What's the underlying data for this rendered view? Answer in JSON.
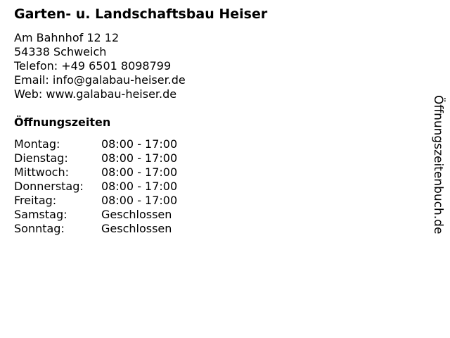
{
  "title": "Garten- u. Landschaftsbau Heiser",
  "address": [
    "Am Bahnhof 12 12",
    "54338 Schweich",
    "Telefon: +49 6501 8098799",
    "Email: info@galabau-heiser.de",
    "Web: www.galabau-heiser.de"
  ],
  "hours_title": "Öffnungszeiten",
  "hours": [
    {
      "day": "Montag:",
      "time": "08:00 - 17:00"
    },
    {
      "day": "Dienstag:",
      "time": "08:00 - 17:00"
    },
    {
      "day": "Mittwoch:",
      "time": "08:00 - 17:00"
    },
    {
      "day": "Donnerstag:",
      "time": "08:00 - 17:00"
    },
    {
      "day": "Freitag:",
      "time": "08:00 - 17:00"
    },
    {
      "day": "Samstag:",
      "time": "Geschlossen"
    },
    {
      "day": "Sonntag:",
      "time": "Geschlossen"
    }
  ],
  "watermark": "Öffnungszeitenbuch.de"
}
